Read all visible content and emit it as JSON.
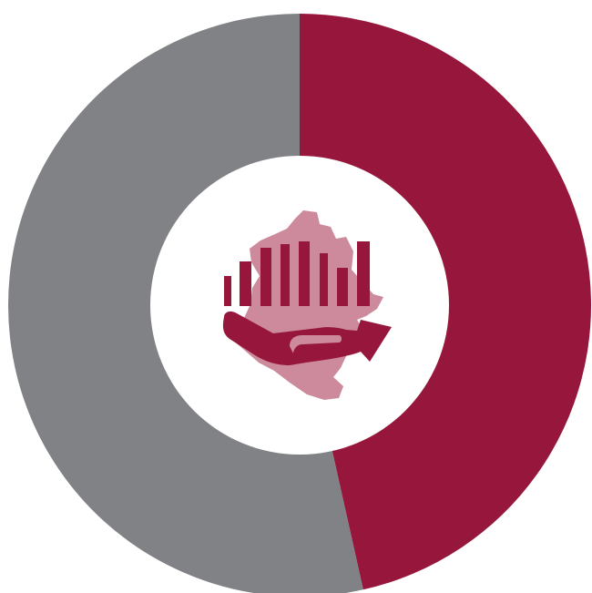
{
  "chart_data": {
    "type": "pie",
    "variant": "donut",
    "title": "",
    "series": [
      {
        "value": 46.5,
        "color": "#96173b"
      },
      {
        "value": 53.5,
        "color": "#818285"
      }
    ],
    "start": "top",
    "direction": "clockwise"
  },
  "center_icon": {
    "name": "region-map-hand-bar-chart-icon",
    "map_color": "#cc8a9c",
    "icon_color": "#96173b"
  }
}
